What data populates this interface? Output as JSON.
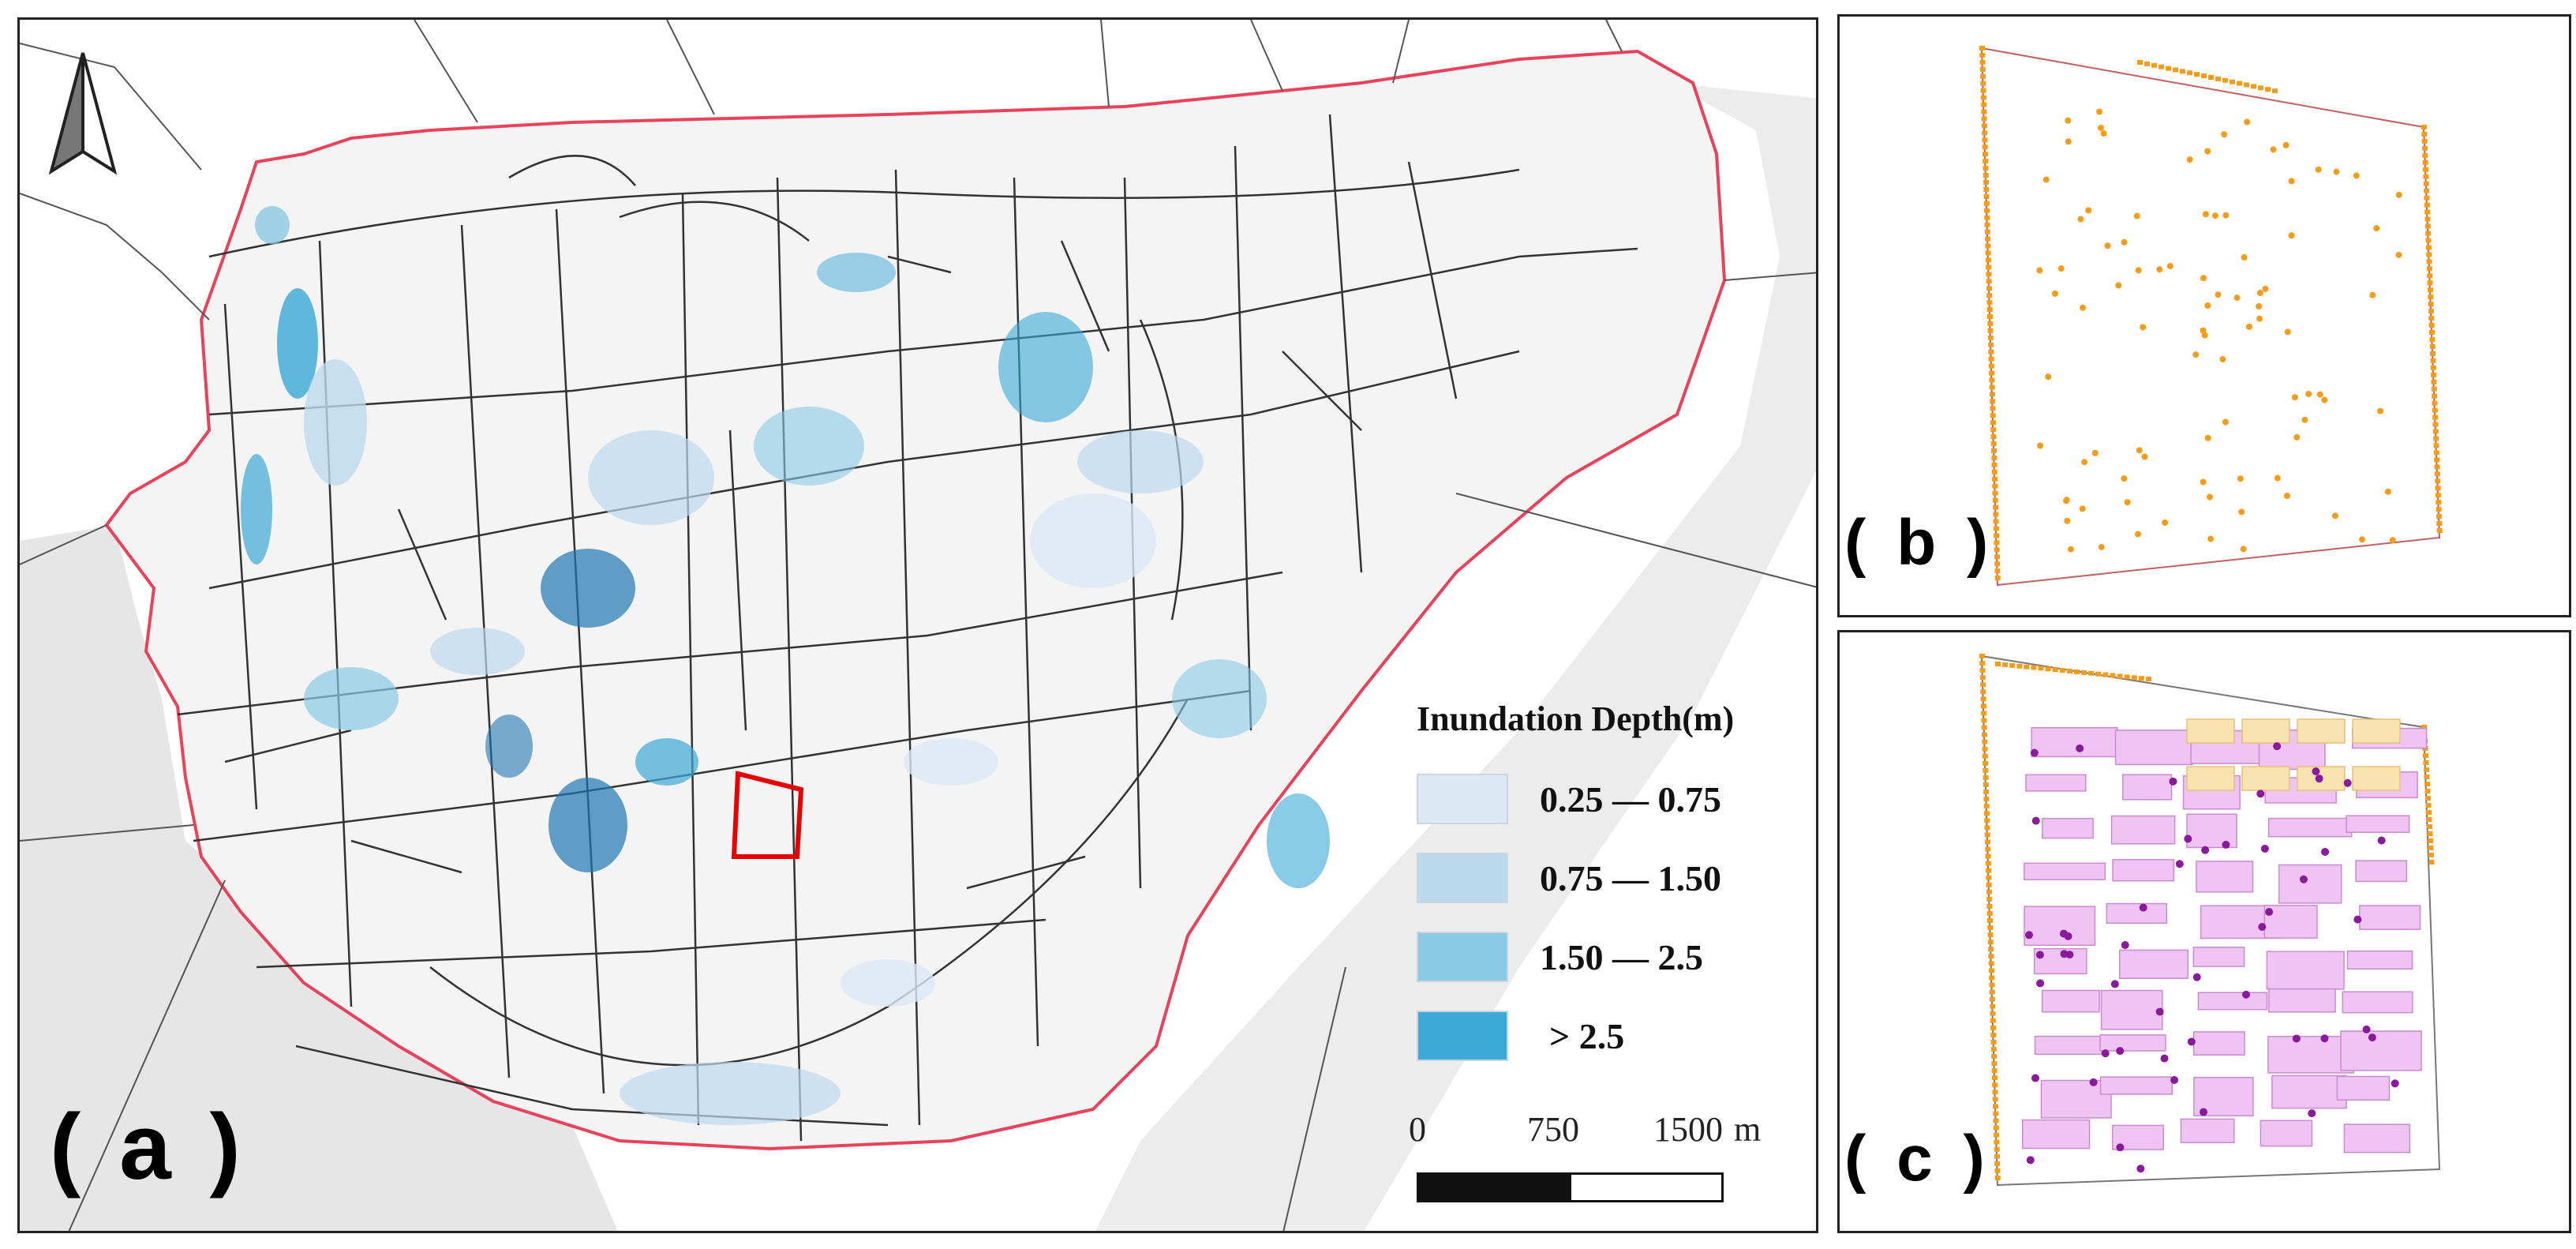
{
  "panels": {
    "a": {
      "label": "( a )"
    },
    "b": {
      "label": "( b )"
    },
    "c": {
      "label": "( c )"
    }
  },
  "legend": {
    "title": "Inundation Depth(m)",
    "items": [
      {
        "label": "0.25 — 0.75",
        "color": "#dce9f5"
      },
      {
        "label": "0.75 — 1.50",
        "color": "#bdd9ee"
      },
      {
        "label": "1.50 — 2.5",
        "color": "#89c9e4"
      },
      {
        "label": "> 2.5",
        "color": "#3ba8d6"
      }
    ]
  },
  "scale_bar": {
    "ticks": [
      "0",
      "750",
      "1500"
    ],
    "unit": "m"
  },
  "north_arrow": {
    "icon": "north-arrow-icon"
  },
  "colors": {
    "boundary": "#e8435b",
    "roads": "#333333",
    "study_area": "#e60000",
    "inundation_dark": "#1f77b4",
    "drain_points": "#f59c1a",
    "buildings": "#f0c4f2",
    "buildings_yellow": "#f8e3b0",
    "building_points": "#8a1a9b"
  }
}
